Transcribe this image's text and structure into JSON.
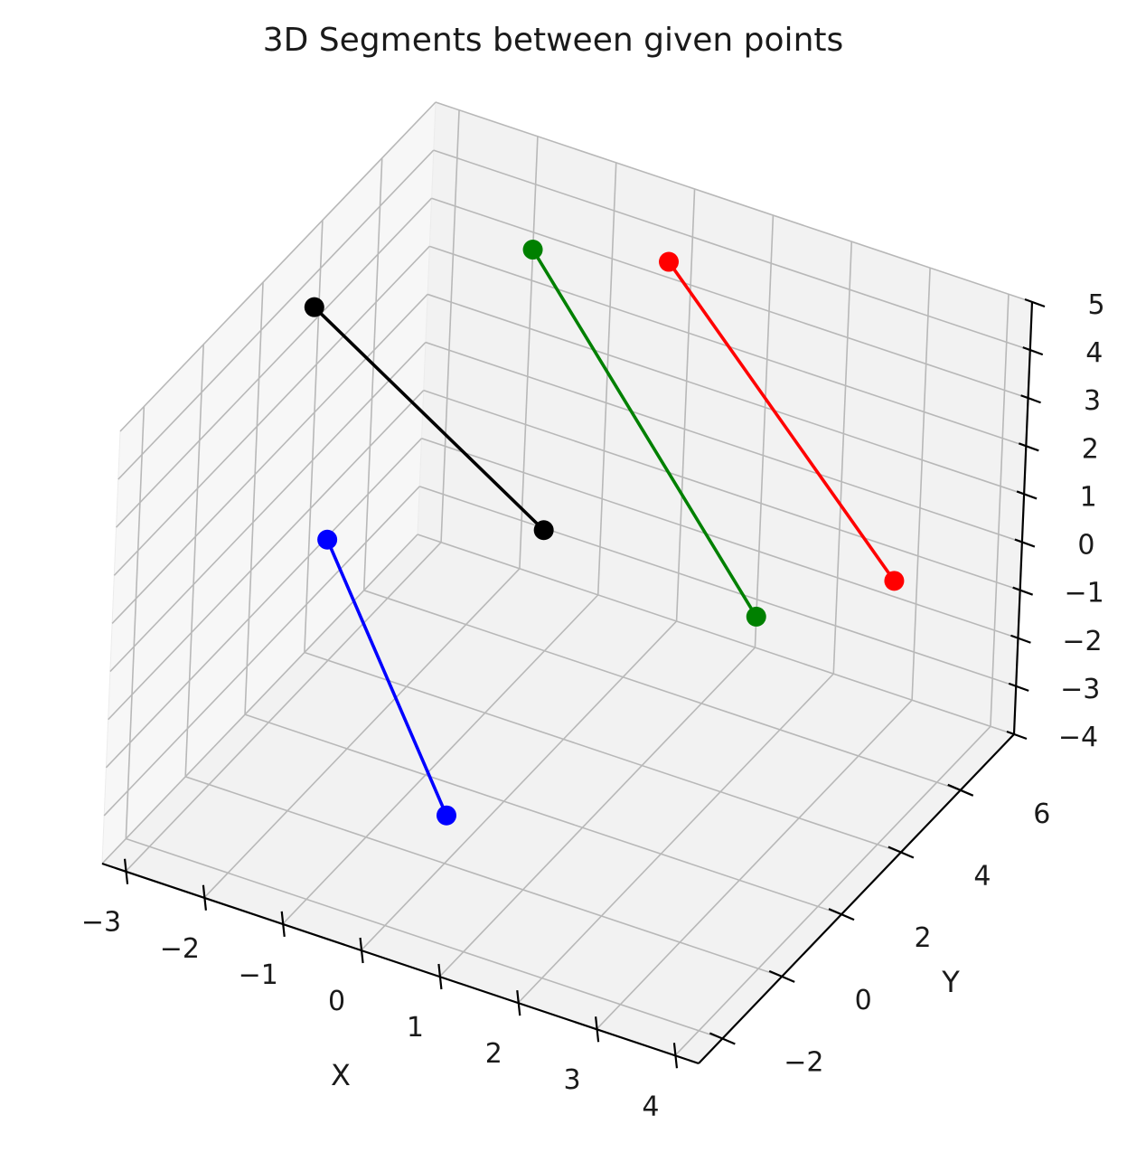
{
  "chart_data": {
    "type": "scatter",
    "projection": "3d",
    "title": "3D Segments between given points",
    "xlabel": "X",
    "ylabel": "Y",
    "zlabel": "",
    "xlim": [
      -3.3,
      4.3
    ],
    "ylim": [
      -2.8,
      7.8
    ],
    "zlim": [
      -4,
      5
    ],
    "xticks": [
      "−3",
      "−2",
      "−1",
      "0",
      "1",
      "2",
      "3",
      "4"
    ],
    "xtick_values": [
      -3,
      -2,
      -1,
      0,
      1,
      2,
      3,
      4
    ],
    "yticks": [
      "−2",
      "0",
      "2",
      "4",
      "6"
    ],
    "ytick_values": [
      -2,
      0,
      2,
      4,
      6
    ],
    "zticks": [
      "−4",
      "−3",
      "−2",
      "−1",
      "0",
      "1",
      "2",
      "3",
      "4",
      "5"
    ],
    "ztick_values": [
      -4,
      -3,
      -2,
      -1,
      0,
      1,
      2,
      3,
      4,
      5
    ],
    "grid": true,
    "series": [
      {
        "color": "#0000ff",
        "points": [
          [
            -2,
            1,
            1
          ],
          [
            0,
            0,
            -3
          ]
        ]
      },
      {
        "color": "#000000",
        "points": [
          [
            -3,
            3,
            4
          ],
          [
            0,
            3,
            1
          ]
        ]
      },
      {
        "color": "#008000",
        "points": [
          [
            -1,
            5,
            5
          ],
          [
            2,
            5,
            -1
          ]
        ]
      },
      {
        "color": "#ff0000",
        "points": [
          [
            0,
            7,
            4
          ],
          [
            3,
            7,
            -1
          ]
        ]
      }
    ]
  }
}
